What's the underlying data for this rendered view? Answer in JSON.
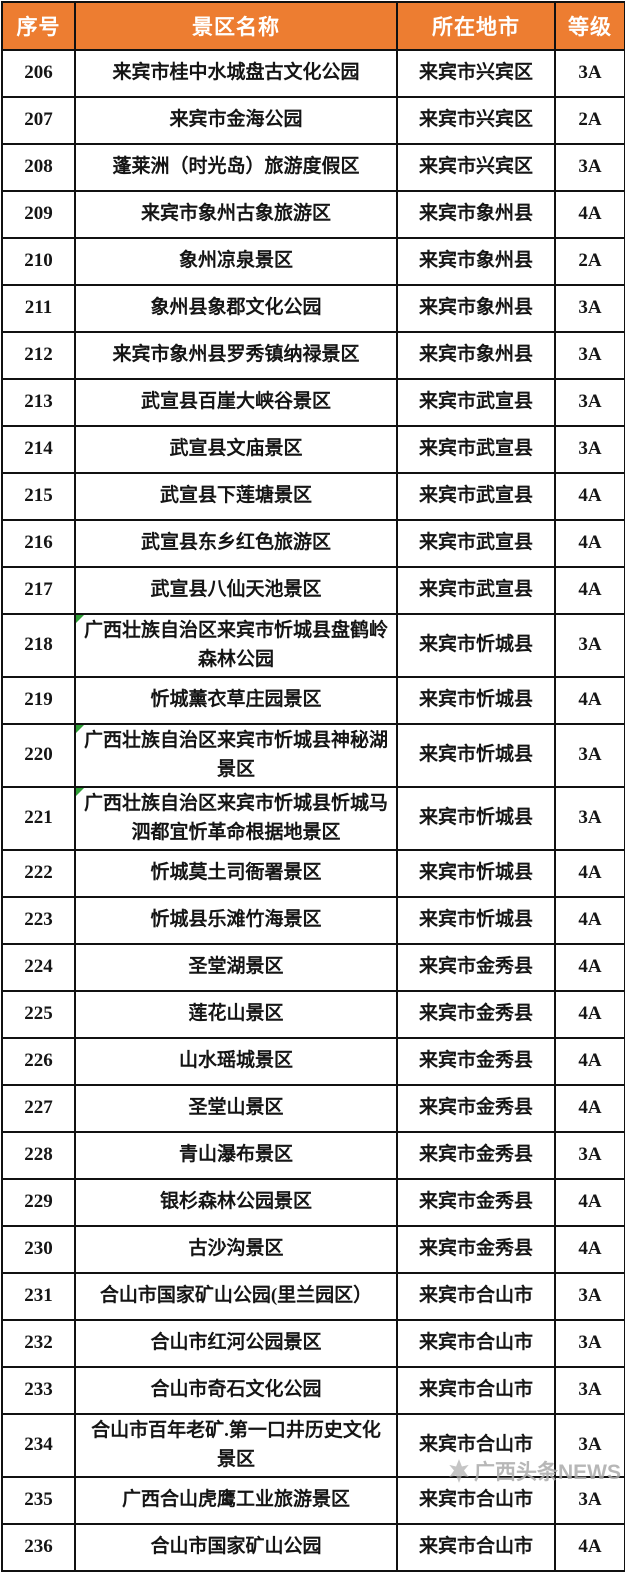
{
  "colors": {
    "header_bg": "#ED7D31",
    "header_text": "#FFFFFF",
    "flag_green": "#2E9E36",
    "watermark_gray": "#ABABAB"
  },
  "table": {
    "headers": [
      "序号",
      "景区名称",
      "所在地市",
      "等级"
    ],
    "rows": [
      {
        "no": "206",
        "name": "来宾市桂中水城盘古文化公园",
        "city": "来宾市兴宾区",
        "grade": "3A"
      },
      {
        "no": "207",
        "name": "来宾市金海公园",
        "city": "来宾市兴宾区",
        "grade": "2A"
      },
      {
        "no": "208",
        "name": "蓬莱洲（时光岛）旅游度假区",
        "city": "来宾市兴宾区",
        "grade": "3A"
      },
      {
        "no": "209",
        "name": "来宾市象州古象旅游区",
        "city": "来宾市象州县",
        "grade": "4A"
      },
      {
        "no": "210",
        "name": "象州凉泉景区",
        "city": "来宾市象州县",
        "grade": "2A"
      },
      {
        "no": "211",
        "name": "象州县象郡文化公园",
        "city": "来宾市象州县",
        "grade": "3A"
      },
      {
        "no": "212",
        "name": "来宾市象州县罗秀镇纳禄景区",
        "city": "来宾市象州县",
        "grade": "3A"
      },
      {
        "no": "213",
        "name": "武宣县百崖大峡谷景区",
        "city": "来宾市武宣县",
        "grade": "3A"
      },
      {
        "no": "214",
        "name": "武宣县文庙景区",
        "city": "来宾市武宣县",
        "grade": "3A"
      },
      {
        "no": "215",
        "name": "武宣县下莲塘景区",
        "city": "来宾市武宣县",
        "grade": "4A"
      },
      {
        "no": "216",
        "name": "武宣县东乡红色旅游区",
        "city": "来宾市武宣县",
        "grade": "4A"
      },
      {
        "no": "217",
        "name": "武宣县八仙天池景区",
        "city": "来宾市武宣县",
        "grade": "4A"
      },
      {
        "no": "218",
        "name": "广西壮族自治区来宾市忻城县盘鹤岭森林公园",
        "city": "来宾市忻城县",
        "grade": "3A",
        "flag": true
      },
      {
        "no": "219",
        "name": "忻城薰衣草庄园景区",
        "city": "来宾市忻城县",
        "grade": "4A"
      },
      {
        "no": "220",
        "name": "广西壮族自治区来宾市忻城县神秘湖景区",
        "city": "来宾市忻城县",
        "grade": "3A",
        "flag": true
      },
      {
        "no": "221",
        "name": "广西壮族自治区来宾市忻城县忻城马泗都宜忻革命根据地景区",
        "city": "来宾市忻城县",
        "grade": "3A",
        "flag": true
      },
      {
        "no": "222",
        "name": "忻城莫土司衙署景区",
        "city": "来宾市忻城县",
        "grade": "4A"
      },
      {
        "no": "223",
        "name": "忻城县乐滩竹海景区",
        "city": "来宾市忻城县",
        "grade": "4A"
      },
      {
        "no": "224",
        "name": "圣堂湖景区",
        "city": "来宾市金秀县",
        "grade": "4A"
      },
      {
        "no": "225",
        "name": "莲花山景区",
        "city": "来宾市金秀县",
        "grade": "4A"
      },
      {
        "no": "226",
        "name": "山水瑶城景区",
        "city": "来宾市金秀县",
        "grade": "4A"
      },
      {
        "no": "227",
        "name": "圣堂山景区",
        "city": "来宾市金秀县",
        "grade": "4A"
      },
      {
        "no": "228",
        "name": "青山瀑布景区",
        "city": "来宾市金秀县",
        "grade": "3A"
      },
      {
        "no": "229",
        "name": "银杉森林公园景区",
        "city": "来宾市金秀县",
        "grade": "4A"
      },
      {
        "no": "230",
        "name": "古沙沟景区",
        "city": "来宾市金秀县",
        "grade": "4A"
      },
      {
        "no": "231",
        "name": "合山市国家矿山公园(里兰园区）",
        "city": "来宾市合山市",
        "grade": "3A"
      },
      {
        "no": "232",
        "name": "合山市红河公园景区",
        "city": "来宾市合山市",
        "grade": "3A"
      },
      {
        "no": "233",
        "name": "合山市奇石文化公园",
        "city": "来宾市合山市",
        "grade": "3A"
      },
      {
        "no": "234",
        "name": "合山市百年老矿.第一口井历史文化景区",
        "city": "来宾市合山市",
        "grade": "3A"
      },
      {
        "no": "235",
        "name": "广西合山虎鹰工业旅游景区",
        "city": "来宾市合山市",
        "grade": "3A"
      },
      {
        "no": "236",
        "name": "合山市国家矿山公园",
        "city": "来宾市合山市",
        "grade": "4A"
      }
    ]
  },
  "watermark": {
    "text": "广西头条NEWS",
    "icon": "star-logo-icon"
  }
}
